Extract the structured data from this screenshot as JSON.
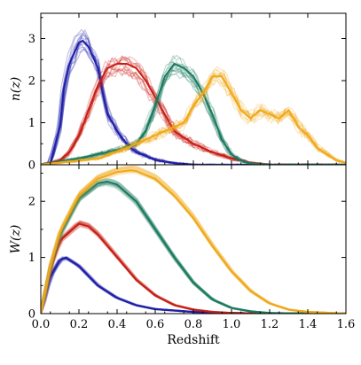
{
  "chart_data": [
    {
      "panel": "top",
      "type": "line",
      "ylabel": "n(z)",
      "xlabel": "",
      "xlim": [
        0.0,
        1.6
      ],
      "ylim": [
        0,
        3.6
      ],
      "yticks": [
        0,
        1,
        2,
        3
      ],
      "xticks": [
        0.0,
        0.2,
        0.4,
        0.6,
        0.8,
        1.0,
        1.2,
        1.4,
        1.6
      ],
      "series": [
        {
          "color": "#1f1fa8",
          "x": [
            0.0,
            0.05,
            0.1,
            0.12,
            0.15,
            0.18,
            0.2,
            0.22,
            0.25,
            0.28,
            0.3,
            0.32,
            0.35,
            0.4,
            0.45,
            0.5,
            0.6,
            0.7,
            0.8
          ],
          "y": [
            0.0,
            0.05,
            0.9,
            1.8,
            2.4,
            2.7,
            2.9,
            2.95,
            2.8,
            2.5,
            2.3,
            1.8,
            1.2,
            0.8,
            0.5,
            0.3,
            0.12,
            0.04,
            0.0
          ]
        },
        {
          "color": "#c81e14",
          "x": [
            0.0,
            0.1,
            0.15,
            0.2,
            0.25,
            0.3,
            0.35,
            0.4,
            0.45,
            0.5,
            0.55,
            0.6,
            0.65,
            0.7,
            0.8,
            0.9,
            1.0,
            1.1,
            1.2
          ],
          "y": [
            0.0,
            0.1,
            0.3,
            0.7,
            1.3,
            1.9,
            2.3,
            2.4,
            2.4,
            2.3,
            2.0,
            1.6,
            1.2,
            0.8,
            0.5,
            0.3,
            0.15,
            0.05,
            0.0
          ]
        },
        {
          "color": "#1a7a5e",
          "x": [
            0.0,
            0.2,
            0.4,
            0.5,
            0.55,
            0.6,
            0.65,
            0.7,
            0.75,
            0.8,
            0.85,
            0.9,
            0.95,
            1.0,
            1.05,
            1.1,
            1.2
          ],
          "y": [
            0.0,
            0.15,
            0.35,
            0.5,
            0.8,
            1.4,
            2.1,
            2.4,
            2.3,
            2.1,
            1.7,
            1.2,
            0.6,
            0.25,
            0.1,
            0.03,
            0.0
          ]
        },
        {
          "color": "#f0a818",
          "x": [
            0.0,
            0.3,
            0.45,
            0.55,
            0.65,
            0.75,
            0.8,
            0.85,
            0.9,
            0.95,
            1.0,
            1.05,
            1.1,
            1.15,
            1.2,
            1.25,
            1.3,
            1.35,
            1.4,
            1.45,
            1.5,
            1.55,
            1.6
          ],
          "y": [
            0.0,
            0.15,
            0.4,
            0.6,
            0.8,
            1.0,
            1.4,
            1.7,
            2.1,
            2.1,
            1.7,
            1.3,
            1.1,
            1.3,
            1.2,
            1.1,
            1.3,
            0.9,
            0.7,
            0.4,
            0.25,
            0.1,
            0.05
          ]
        }
      ]
    },
    {
      "panel": "bottom",
      "type": "line",
      "ylabel": "W(z)",
      "xlabel": "Redshift",
      "xlim": [
        0.0,
        1.6
      ],
      "ylim": [
        0,
        2.65
      ],
      "yticks": [
        0,
        1,
        2
      ],
      "xticks": [
        0.0,
        0.2,
        0.4,
        0.6,
        0.8,
        1.0,
        1.2,
        1.4,
        1.6
      ],
      "xticklabels": [
        "0.0",
        "0.2",
        "0.4",
        "0.6",
        "0.8",
        "1.0",
        "1.2",
        "1.4",
        "1.6"
      ],
      "series": [
        {
          "color": "#1f1fa8",
          "x": [
            0.0,
            0.05,
            0.1,
            0.13,
            0.2,
            0.3,
            0.4,
            0.5,
            0.6,
            0.8,
            1.0,
            1.2,
            1.6
          ],
          "y": [
            0.0,
            0.65,
            0.95,
            1.0,
            0.85,
            0.5,
            0.28,
            0.15,
            0.08,
            0.03,
            0.01,
            0.0,
            0.0
          ]
        },
        {
          "color": "#c81e14",
          "x": [
            0.0,
            0.05,
            0.1,
            0.2,
            0.25,
            0.3,
            0.4,
            0.5,
            0.6,
            0.7,
            0.8,
            0.9,
            1.0,
            1.2,
            1.6
          ],
          "y": [
            0.0,
            0.8,
            1.3,
            1.6,
            1.55,
            1.4,
            1.0,
            0.6,
            0.32,
            0.15,
            0.07,
            0.03,
            0.01,
            0.0,
            0.0
          ]
        },
        {
          "color": "#1a7a5e",
          "x": [
            0.0,
            0.05,
            0.1,
            0.2,
            0.3,
            0.35,
            0.4,
            0.5,
            0.6,
            0.7,
            0.8,
            0.9,
            1.0,
            1.1,
            1.2,
            1.4,
            1.6
          ],
          "y": [
            0.0,
            0.85,
            1.4,
            2.05,
            2.32,
            2.35,
            2.3,
            2.0,
            1.5,
            1.0,
            0.55,
            0.25,
            0.1,
            0.04,
            0.01,
            0.0,
            0.0
          ]
        },
        {
          "color": "#f0a818",
          "x": [
            0.0,
            0.05,
            0.1,
            0.2,
            0.3,
            0.4,
            0.47,
            0.5,
            0.6,
            0.7,
            0.8,
            0.9,
            1.0,
            1.1,
            1.2,
            1.3,
            1.4,
            1.6
          ],
          "y": [
            0.0,
            0.85,
            1.45,
            2.1,
            2.4,
            2.52,
            2.55,
            2.54,
            2.4,
            2.1,
            1.7,
            1.2,
            0.75,
            0.4,
            0.18,
            0.07,
            0.03,
            0.0
          ]
        }
      ]
    }
  ]
}
